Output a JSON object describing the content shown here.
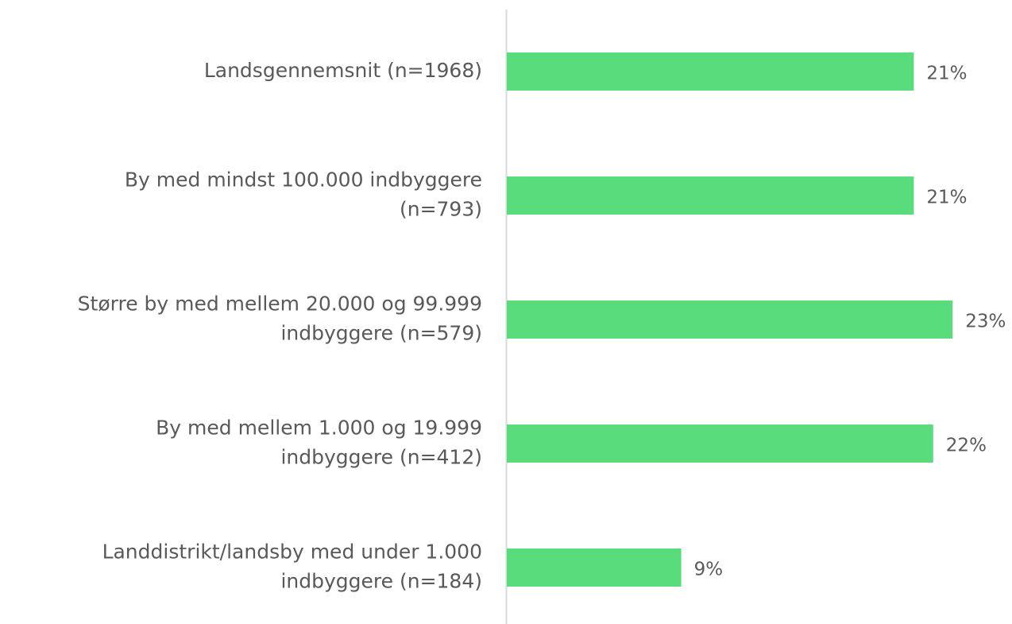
{
  "chart_data": {
    "type": "barh",
    "categories": [
      [
        "Landsgennemsnit (n=1968)"
      ],
      [
        "By med mindst 100.000 indbyggere",
        "(n=793)"
      ],
      [
        "Større by med mellem 20.000 og 99.999",
        "indbyggere (n=579)"
      ],
      [
        "By med mellem 1.000 og 19.999",
        "indbyggere (n=412)"
      ],
      [
        "Landdistrikt/landsby med under 1.000",
        "indbyggere (n=184)"
      ]
    ],
    "values": [
      21,
      21,
      23,
      22,
      9
    ],
    "value_labels": [
      "21%",
      "21%",
      "23%",
      "22%",
      "9%"
    ],
    "color": "#58dc7c"
  }
}
